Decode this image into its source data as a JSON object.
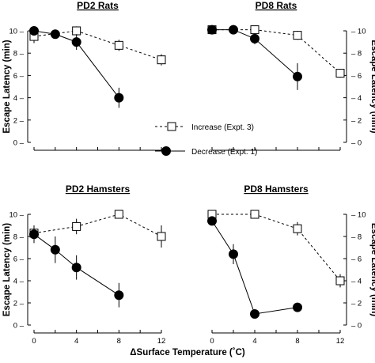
{
  "chart_data": [
    {
      "type": "line",
      "title": "PD2 Rats",
      "ylabel": "Escape Latency (min)",
      "ylabel_side": "left",
      "xlim": [
        0,
        12
      ],
      "ylim": [
        0,
        10
      ],
      "xticks": [
        "0",
        "2",
        "4",
        "6",
        "8",
        "10",
        "12"
      ],
      "yticks": [
        "0",
        "2",
        "4",
        "6",
        "8",
        "10"
      ],
      "show_xticklabels": false,
      "series": [
        {
          "key": "increase",
          "x": [
            0,
            4,
            8,
            12
          ],
          "y": [
            9.5,
            10.0,
            8.7,
            7.4
          ],
          "err": [
            0.6,
            0.4,
            0.5,
            0.5
          ]
        },
        {
          "key": "decrease",
          "x": [
            0,
            2,
            4,
            8
          ],
          "y": [
            10.0,
            9.7,
            9.0,
            4.0
          ],
          "err": [
            0.3,
            0.3,
            0.7,
            0.9
          ]
        }
      ]
    },
    {
      "type": "line",
      "title": "PD8 Rats",
      "ylabel": "Escape Latency (min)",
      "ylabel_side": "right",
      "xlim": [
        0,
        12
      ],
      "ylim": [
        0,
        10
      ],
      "xticks": [
        "0",
        "2",
        "4",
        "6",
        "8",
        "10",
        "12"
      ],
      "yticks": [
        "0",
        "2",
        "4",
        "6",
        "8",
        "10"
      ],
      "show_xticklabels": false,
      "series": [
        {
          "key": "increase",
          "x": [
            0,
            4,
            8,
            12
          ],
          "y": [
            10.1,
            10.1,
            9.6,
            6.2
          ],
          "err": [
            0.2,
            0.3,
            0.4,
            0.4
          ]
        },
        {
          "key": "decrease",
          "x": [
            0,
            2,
            4,
            8
          ],
          "y": [
            10.1,
            10.1,
            9.3,
            5.9
          ],
          "err": [
            0.2,
            0.2,
            0.5,
            1.2
          ]
        }
      ]
    },
    {
      "type": "line",
      "title": "PD2 Hamsters",
      "ylabel": "Escape Latency (min)",
      "ylabel_side": "left",
      "xlim": [
        0,
        12
      ],
      "ylim": [
        0,
        10
      ],
      "xticks": [
        "0",
        "2",
        "4",
        "6",
        "8",
        "10",
        "12"
      ],
      "yticks": [
        "0",
        "2",
        "4",
        "6",
        "8",
        "10"
      ],
      "show_xticklabels": true,
      "series": [
        {
          "key": "increase",
          "x": [
            0,
            4,
            8,
            12
          ],
          "y": [
            8.3,
            8.9,
            10.0,
            8.0
          ],
          "err": [
            0.6,
            0.7,
            0.2,
            1.0
          ]
        },
        {
          "key": "decrease",
          "x": [
            0,
            2,
            4,
            8
          ],
          "y": [
            8.2,
            6.8,
            5.2,
            2.7
          ],
          "err": [
            0.8,
            1.2,
            1.1,
            1.1
          ]
        }
      ]
    },
    {
      "type": "line",
      "title": "PD8 Hamsters",
      "ylabel": "Escape Latency (min)",
      "ylabel_side": "right",
      "xlim": [
        0,
        12
      ],
      "ylim": [
        0,
        10
      ],
      "xticks": [
        "0",
        "2",
        "4",
        "6",
        "8",
        "10",
        "12"
      ],
      "yticks": [
        "0",
        "2",
        "4",
        "6",
        "8",
        "10"
      ],
      "show_xticklabels": true,
      "series": [
        {
          "key": "increase",
          "x": [
            0,
            4,
            8,
            12
          ],
          "y": [
            10.0,
            10.0,
            8.7,
            4.0
          ],
          "err": [
            0.2,
            0.2,
            0.6,
            0.6
          ]
        },
        {
          "key": "decrease",
          "x": [
            0,
            2,
            4,
            8
          ],
          "y": [
            9.4,
            6.4,
            1.0,
            1.6
          ],
          "err": [
            0.3,
            0.9,
            0.3,
            0.2
          ]
        }
      ]
    }
  ],
  "xlabel": "ΔSurface Temperature (˚C)",
  "legend": [
    {
      "key": "increase",
      "label": "Increase (Expt. 3)",
      "marker": "open-square",
      "line": "dashed"
    },
    {
      "key": "decrease",
      "label": "Decrease (Expt. 1)",
      "marker": "filled-circle",
      "line": "solid"
    }
  ]
}
